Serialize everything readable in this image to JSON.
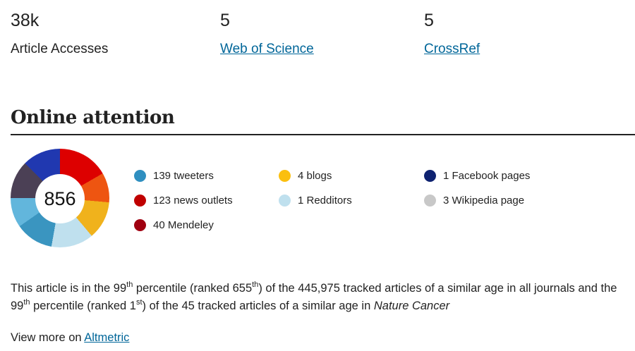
{
  "metrics": [
    {
      "value": "38k",
      "label": "Article Accesses",
      "link": false
    },
    {
      "value": "5",
      "label": "Web of Science",
      "link": true
    },
    {
      "value": "5",
      "label": "CrossRef",
      "link": true
    }
  ],
  "section_title": "Online attention",
  "altmetric_score": "856",
  "legend": [
    {
      "label": "139 tweeters",
      "color": "#2f8fc0"
    },
    {
      "label": "123 news outlets",
      "color": "#c00000"
    },
    {
      "label": "40 Mendeley",
      "color": "#a00010"
    },
    {
      "label": "4 blogs",
      "color": "#fbbf0f"
    },
    {
      "label": "1 Redditors",
      "color": "#bfe0ee"
    },
    {
      "label": "1 Facebook pages",
      "color": "#0e2270"
    },
    {
      "label": "3 Wikipedia page",
      "color": "#c8c8c8"
    }
  ],
  "summary": {
    "s1": "This article is in the 99",
    "s1sup": "th",
    "s2": " percentile (ranked 655",
    "s2sup": "th",
    "s3": ") of the 445,975 tracked articles of a similar age in all journals and the 99",
    "s3sup": "th",
    "s4": " percentile (ranked 1",
    "s4sup": "st",
    "s5": ") of the 45 tracked articles of a similar age in ",
    "journal": "Nature Cancer"
  },
  "view_more": {
    "prefix": "View more on ",
    "link": "Altmetric"
  }
}
